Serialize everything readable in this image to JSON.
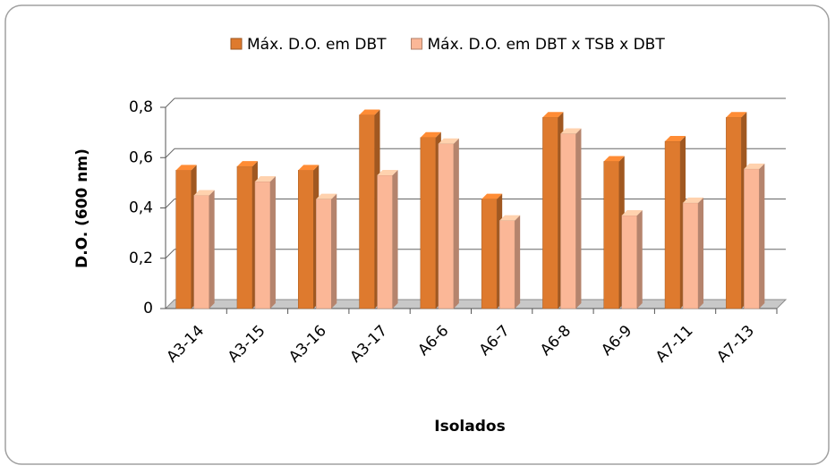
{
  "chart_data": {
    "type": "bar",
    "categories": [
      "A3-14",
      "A3-15",
      "A3-16",
      "A3-17",
      "A6-6",
      "A6-7",
      "A6-8",
      "A6-9",
      "A7-11",
      "A7-13"
    ],
    "series": [
      {
        "name": "Máx. D.O. em DBT",
        "color": "#de7a2e",
        "values": [
          0.55,
          0.565,
          0.55,
          0.77,
          0.68,
          0.435,
          0.76,
          0.585,
          0.665,
          0.76
        ]
      },
      {
        "name": "Máx. D.O. em DBT x TSB x DBT",
        "color": "#fbb797",
        "values": [
          0.45,
          0.505,
          0.435,
          0.53,
          0.655,
          0.35,
          0.695,
          0.37,
          0.42,
          0.555
        ]
      }
    ],
    "ylim": [
      0,
      0.8
    ],
    "yticks": [
      0,
      {
        "value": 0.2,
        "label": "0,2"
      },
      {
        "value": 0.4,
        "label": "0,4"
      },
      {
        "value": 0.6,
        "label": "0,6"
      },
      {
        "value": 0.8,
        "label": "0,8"
      }
    ],
    "ylabel": "D.O. (600 nm)",
    "xlabel": "Isolados",
    "grid": true,
    "legend": "top"
  }
}
